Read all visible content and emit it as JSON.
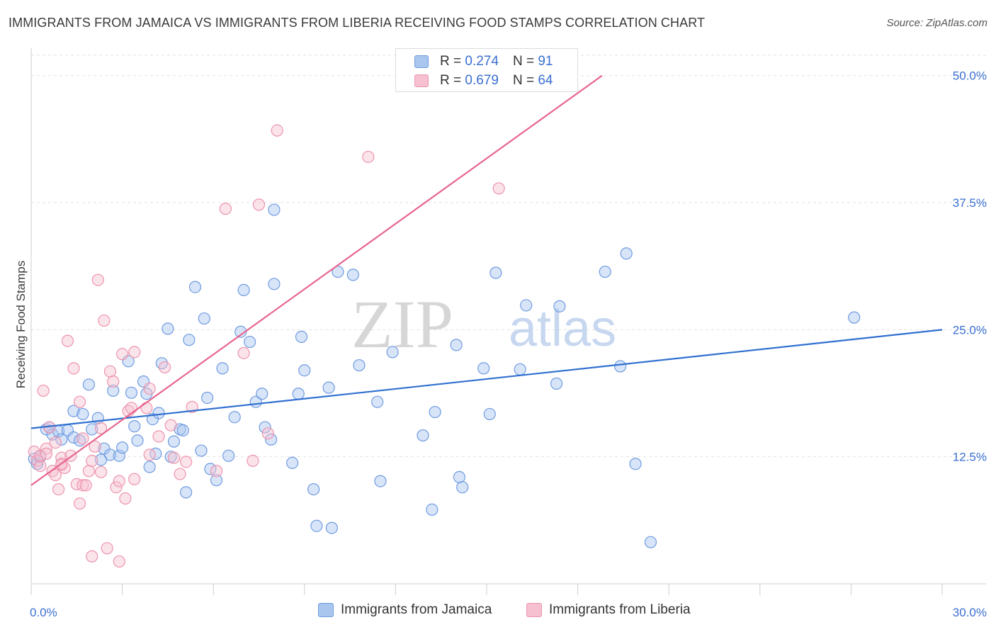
{
  "header": {
    "title": "IMMIGRANTS FROM JAMAICA VS IMMIGRANTS FROM LIBERIA RECEIVING FOOD STAMPS CORRELATION CHART",
    "source": "Source: ZipAtlas.com"
  },
  "watermark": {
    "zip": "ZIP",
    "atlas": "atlas"
  },
  "legend": {
    "jamaica": {
      "r_label": "R =",
      "r_value": "0.274",
      "n_label": "N =",
      "n_value": "91"
    },
    "liberia": {
      "r_label": "R =",
      "r_value": "0.679",
      "n_label": "N =",
      "n_value": "64"
    }
  },
  "colors": {
    "jamaica_fill": "#a9c6ef",
    "jamaica_stroke": "#6f9be0",
    "jamaica_line": "#2f6fd0",
    "liberia_fill": "#f6c0d0",
    "liberia_stroke": "#ec94ae",
    "liberia_line": "#e8668f",
    "tick_label": "#3a6fd0",
    "grid": "#e2e2e2"
  },
  "chart_data": {
    "type": "scatter",
    "title": "IMMIGRANTS FROM JAMAICA VS IMMIGRANTS FROM LIBERIA RECEIVING FOOD STAMPS CORRELATION CHART",
    "xlabel": "",
    "ylabel": "Receiving Food Stamps",
    "xlim": [
      0,
      30
    ],
    "ylim": [
      0,
      52
    ],
    "x_tick_labels": [
      "0.0%",
      "30.0%"
    ],
    "y_ticks": [
      12.5,
      25.0,
      37.5,
      50.0
    ],
    "y_tick_labels": [
      "12.5%",
      "25.0%",
      "37.5%",
      "50.0%"
    ],
    "grid": true,
    "legend_position": "top-center",
    "series": [
      {
        "name": "Immigrants from Jamaica",
        "trend": {
          "x": [
            0,
            30
          ],
          "y": [
            15.3,
            25.0
          ]
        },
        "points": [
          [
            0.1,
            12.3
          ],
          [
            0.2,
            11.8
          ],
          [
            0.3,
            12.5
          ],
          [
            0.5,
            15.2
          ],
          [
            0.6,
            15.4
          ],
          [
            0.7,
            14.7
          ],
          [
            0.9,
            15.0
          ],
          [
            1.0,
            14.2
          ],
          [
            1.2,
            15.1
          ],
          [
            1.4,
            14.4
          ],
          [
            1.4,
            17.0
          ],
          [
            1.6,
            14.1
          ],
          [
            1.7,
            16.7
          ],
          [
            1.9,
            19.6
          ],
          [
            2.0,
            15.2
          ],
          [
            2.2,
            16.3
          ],
          [
            2.3,
            12.2
          ],
          [
            2.4,
            13.3
          ],
          [
            2.6,
            12.7
          ],
          [
            2.7,
            19.0
          ],
          [
            2.9,
            12.6
          ],
          [
            3.0,
            13.4
          ],
          [
            3.2,
            21.9
          ],
          [
            3.3,
            18.8
          ],
          [
            3.4,
            15.5
          ],
          [
            3.5,
            14.1
          ],
          [
            3.7,
            19.9
          ],
          [
            3.8,
            18.7
          ],
          [
            3.9,
            11.5
          ],
          [
            4.0,
            16.2
          ],
          [
            4.1,
            12.8
          ],
          [
            4.2,
            16.8
          ],
          [
            4.3,
            21.7
          ],
          [
            4.5,
            25.1
          ],
          [
            4.6,
            12.5
          ],
          [
            4.7,
            14.0
          ],
          [
            4.9,
            15.2
          ],
          [
            5.0,
            15.1
          ],
          [
            5.1,
            9.0
          ],
          [
            5.2,
            24.0
          ],
          [
            5.4,
            29.2
          ],
          [
            5.6,
            13.1
          ],
          [
            5.7,
            26.1
          ],
          [
            5.8,
            18.3
          ],
          [
            5.9,
            11.3
          ],
          [
            6.1,
            10.2
          ],
          [
            6.3,
            21.2
          ],
          [
            6.5,
            12.6
          ],
          [
            6.7,
            16.4
          ],
          [
            6.9,
            24.8
          ],
          [
            7.0,
            28.9
          ],
          [
            7.2,
            23.8
          ],
          [
            7.4,
            17.9
          ],
          [
            7.6,
            18.7
          ],
          [
            7.7,
            15.4
          ],
          [
            7.9,
            14.2
          ],
          [
            8.0,
            29.5
          ],
          [
            8.6,
            11.9
          ],
          [
            8.8,
            18.7
          ],
          [
            8.9,
            24.3
          ],
          [
            9.0,
            21.0
          ],
          [
            9.3,
            9.3
          ],
          [
            9.4,
            5.7
          ],
          [
            9.8,
            19.3
          ],
          [
            9.9,
            5.5
          ],
          [
            10.1,
            30.7
          ],
          [
            10.6,
            30.4
          ],
          [
            10.8,
            21.5
          ],
          [
            11.4,
            17.9
          ],
          [
            11.5,
            10.1
          ],
          [
            11.9,
            22.8
          ],
          [
            12.9,
            14.6
          ],
          [
            13.2,
            7.3
          ],
          [
            13.3,
            16.9
          ],
          [
            14.0,
            23.5
          ],
          [
            14.1,
            10.5
          ],
          [
            14.2,
            9.5
          ],
          [
            14.9,
            21.2
          ],
          [
            15.1,
            16.7
          ],
          [
            15.3,
            30.6
          ],
          [
            16.1,
            21.1
          ],
          [
            16.3,
            27.4
          ],
          [
            17.3,
            19.7
          ],
          [
            17.4,
            27.3
          ],
          [
            18.9,
            30.7
          ],
          [
            19.4,
            21.4
          ],
          [
            19.6,
            32.5
          ],
          [
            19.9,
            11.8
          ],
          [
            20.4,
            4.1
          ],
          [
            27.1,
            26.2
          ],
          [
            8.0,
            36.8
          ]
        ]
      },
      {
        "name": "Immigrants from Liberia",
        "trend": {
          "x": [
            0,
            18.8
          ],
          "y": [
            9.7,
            50.0
          ]
        },
        "points": [
          [
            0.1,
            13.0
          ],
          [
            0.2,
            12.1
          ],
          [
            0.3,
            11.6
          ],
          [
            0.4,
            19.0
          ],
          [
            0.5,
            13.3
          ],
          [
            0.6,
            15.4
          ],
          [
            0.7,
            11.1
          ],
          [
            0.8,
            10.7
          ],
          [
            0.8,
            13.9
          ],
          [
            0.9,
            9.3
          ],
          [
            1.0,
            12.4
          ],
          [
            1.0,
            11.7
          ],
          [
            1.1,
            11.4
          ],
          [
            1.2,
            23.9
          ],
          [
            1.3,
            12.6
          ],
          [
            1.4,
            21.2
          ],
          [
            1.5,
            9.8
          ],
          [
            1.6,
            7.9
          ],
          [
            1.6,
            17.9
          ],
          [
            1.7,
            9.7
          ],
          [
            1.7,
            14.3
          ],
          [
            1.8,
            9.7
          ],
          [
            1.9,
            11.1
          ],
          [
            2.0,
            12.1
          ],
          [
            2.0,
            2.7
          ],
          [
            2.1,
            13.5
          ],
          [
            2.2,
            29.9
          ],
          [
            2.3,
            11.0
          ],
          [
            2.3,
            15.3
          ],
          [
            2.4,
            25.9
          ],
          [
            2.5,
            3.5
          ],
          [
            2.6,
            20.9
          ],
          [
            2.7,
            19.9
          ],
          [
            2.8,
            9.5
          ],
          [
            2.9,
            10.1
          ],
          [
            2.9,
            2.2
          ],
          [
            3.0,
            22.6
          ],
          [
            3.1,
            8.4
          ],
          [
            3.2,
            17.0
          ],
          [
            3.3,
            17.3
          ],
          [
            3.4,
            10.3
          ],
          [
            3.4,
            22.8
          ],
          [
            3.8,
            17.3
          ],
          [
            3.9,
            12.7
          ],
          [
            3.9,
            19.2
          ],
          [
            4.2,
            14.5
          ],
          [
            4.4,
            21.3
          ],
          [
            4.6,
            15.6
          ],
          [
            4.7,
            12.4
          ],
          [
            4.9,
            10.8
          ],
          [
            5.1,
            12.0
          ],
          [
            5.3,
            17.4
          ],
          [
            6.1,
            11.1
          ],
          [
            6.4,
            36.9
          ],
          [
            7.0,
            22.7
          ],
          [
            7.3,
            12.1
          ],
          [
            7.5,
            37.3
          ],
          [
            7.8,
            14.8
          ],
          [
            8.1,
            44.6
          ],
          [
            11.1,
            42.0
          ],
          [
            15.4,
            38.9
          ],
          [
            0.3,
            12.6
          ],
          [
            0.5,
            12.8
          ],
          [
            1.0,
            11.8
          ]
        ]
      }
    ]
  },
  "bottom_legend": {
    "jamaica_label": "Immigrants from Jamaica",
    "liberia_label": "Immigrants from Liberia"
  }
}
